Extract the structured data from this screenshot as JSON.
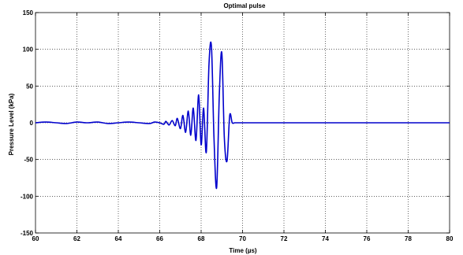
{
  "chart_data": {
    "type": "line",
    "title": "Optimal pulse",
    "xlabel": "Time (µs)",
    "ylabel": "Pressure Level (kPa)",
    "xlim": [
      60,
      80
    ],
    "ylim": [
      -150,
      150
    ],
    "xticks": [
      60,
      62,
      64,
      66,
      68,
      70,
      72,
      74,
      76,
      78,
      80
    ],
    "yticks": [
      -150,
      -100,
      -50,
      0,
      50,
      100,
      150
    ],
    "xtick_labels": [
      "60",
      "62",
      "64",
      "66",
      "68",
      "70",
      "72",
      "74",
      "76",
      "78",
      "80"
    ],
    "ytick_labels": [
      "-150",
      "-100",
      "-50",
      "0",
      "50",
      "100",
      "150"
    ],
    "grid": true,
    "line_color": "#0000cc",
    "series": [
      {
        "x": [
          60.0,
          60.5,
          61.0,
          61.5,
          62.0,
          62.5,
          63.0,
          63.5,
          64.0,
          64.5,
          65.0,
          65.5,
          65.75,
          66.0,
          66.2,
          66.3,
          66.45,
          66.6,
          66.75,
          66.85,
          67.0,
          67.12,
          67.25,
          67.38,
          67.5,
          67.62,
          67.75,
          67.88,
          68.0,
          68.12,
          68.25,
          68.38,
          68.5,
          68.62,
          68.75,
          68.88,
          69.0,
          69.12,
          69.25,
          69.38,
          69.5,
          69.62,
          69.75,
          70.0,
          72.0,
          74.0,
          76.0,
          78.0,
          80.0
        ],
        "y": [
          0,
          1,
          0,
          -1,
          1,
          0,
          1,
          -1,
          0,
          1,
          0,
          -1,
          1,
          0,
          -2,
          2,
          -3,
          3,
          -4,
          6,
          -8,
          10,
          -13,
          16,
          -17,
          20,
          -24,
          38,
          -30,
          20,
          -40,
          80,
          103,
          -20,
          -88,
          40,
          95,
          -20,
          -52,
          10,
          0,
          0,
          0,
          0,
          0,
          0,
          0,
          0,
          0
        ]
      }
    ]
  }
}
